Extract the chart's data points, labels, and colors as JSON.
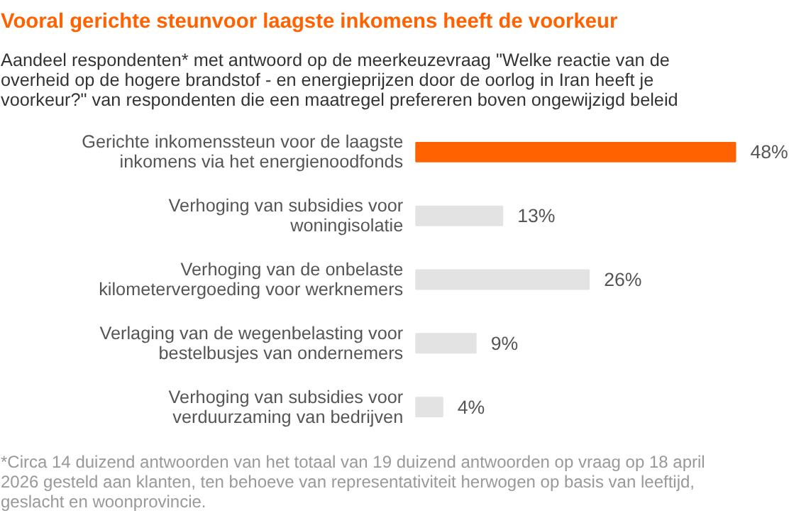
{
  "chart_data": {
    "type": "bar",
    "orientation": "horizontal",
    "title": "Vooral gerichte steunvoor laagste inkomens heeft de voorkeur",
    "subtitle": "Aandeel respondenten* met antwoord op de meerkeuzevraag \"Welke reactie van de overheid op de hogere brandstof - en energieprijzen door de oorlog in Iran heeft je voorkeur?\" van respondenten die een maatregel prefereren boven ongewijzigd beleid",
    "categories": [
      "Gerichte inkomenssteun voor de laagste inkomens via het energienoodfonds",
      "Verhoging van subsidies voor woningisolatie",
      "Verhoging van de onbelaste kilometervergoeding voor werknemers",
      "Verlaging van de wegenbelasting voor bestelbusjes van ondernemers",
      "Verhoging van subsidies voor verduurzaming van bedrijven"
    ],
    "values": [
      48,
      13,
      26,
      9,
      4
    ],
    "value_labels": [
      "48%",
      "13%",
      "26%",
      "9%",
      "4%"
    ],
    "colors": [
      "#ff6200",
      "#e3e3e3",
      "#e3e3e3",
      "#e3e3e3",
      "#e3e3e3"
    ],
    "annotations": [
      "*Circa 14 duizend antwoorden van het totaal van 19 duizend antwoorden op vraag op 18 april 2026 gesteld aan klanten, ten behoeve van representativiteit herwogen op basis van leeftijd, geslacht en woonprovincie."
    ],
    "grid": false
  }
}
